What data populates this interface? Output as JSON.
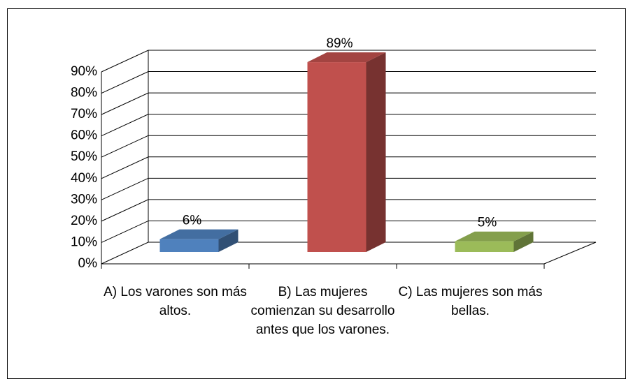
{
  "chart_data": {
    "type": "bar3d",
    "categories": [
      "A) Los varones son más altos.",
      "B) Las mujeres comienzan su desarrollo antes que los varones.",
      "C) Las mujeres son más bellas."
    ],
    "values": [
      6,
      89,
      5
    ],
    "value_labels": [
      "6%",
      "89%",
      "5%"
    ],
    "colors": [
      "#4f81bd",
      "#c0504d",
      "#9bbb59"
    ],
    "ylim": [
      0,
      90
    ],
    "yticks": [
      {
        "value": 0,
        "label": "0%"
      },
      {
        "value": 10,
        "label": "10%"
      },
      {
        "value": 20,
        "label": "20%"
      },
      {
        "value": 30,
        "label": "30%"
      },
      {
        "value": 40,
        "label": "40%"
      },
      {
        "value": 50,
        "label": "50%"
      },
      {
        "value": 60,
        "label": "60%"
      },
      {
        "value": 70,
        "label": "70%"
      },
      {
        "value": 80,
        "label": "80%"
      },
      {
        "value": 90,
        "label": "90%"
      }
    ],
    "grid": true
  }
}
